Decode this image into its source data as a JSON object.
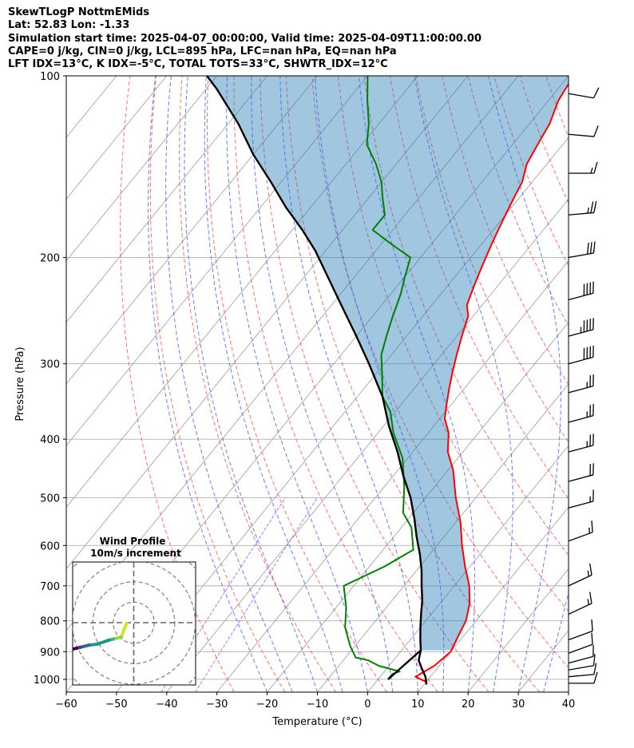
{
  "header": {
    "line1": "SkewTLogP NottmEMids",
    "line2": "Lat: 52.83   Lon: -1.33",
    "line3": "Simulation start time: 2025-04-07_00:00:00, Valid time: 2025-04-09T11:00:00.00",
    "line4": "CAPE=0 j/kg, CIN=0 j/kg, LCL=895 hPa, LFC=nan hPa, EQ=nan hPa",
    "line5": "LFT IDX=13°C, K IDX=-5°C, TOTAL TOTS=33°C, SHWTR_IDX=12°C"
  },
  "chart_data": {
    "type": "line",
    "title": "",
    "xlabel": "Temperature (°C)",
    "ylabel": "Pressure (hPa)",
    "xlim": [
      -60,
      40
    ],
    "ylim": [
      1050,
      100
    ],
    "yscale": "log",
    "grid": true,
    "x_ticks": [
      "−60",
      "−50",
      "−40",
      "−30",
      "−20",
      "−10",
      "0",
      "10",
      "20",
      "30",
      "40"
    ],
    "y_ticks": [
      "100",
      "200",
      "300",
      "400",
      "500",
      "600",
      "700",
      "800",
      "900",
      "1000"
    ],
    "temperature": {
      "color": "#ff0000",
      "points": [
        [
          10,
          1010
        ],
        [
          7,
          990
        ],
        [
          9,
          950
        ],
        [
          10,
          900
        ],
        [
          9,
          850
        ],
        [
          8,
          800
        ],
        [
          6,
          750
        ],
        [
          3,
          700
        ],
        [
          -1,
          650
        ],
        [
          -5,
          600
        ],
        [
          -9,
          550
        ],
        [
          -14,
          500
        ],
        [
          -19,
          450
        ],
        [
          -23,
          420
        ],
        [
          -26,
          390
        ],
        [
          -29,
          370
        ],
        [
          -31,
          350
        ],
        [
          -33,
          330
        ],
        [
          -35,
          310
        ],
        [
          -37,
          290
        ],
        [
          -39,
          270
        ],
        [
          -41,
          250
        ],
        [
          -43,
          240
        ],
        [
          -44,
          230
        ],
        [
          -45,
          220
        ],
        [
          -46,
          210
        ],
        [
          -47,
          200
        ],
        [
          -48,
          190
        ],
        [
          -49,
          180
        ],
        [
          -50,
          170
        ],
        [
          -51,
          160
        ],
        [
          -52,
          150
        ],
        [
          -54,
          140
        ],
        [
          -55,
          130
        ],
        [
          -56,
          120
        ],
        [
          -58,
          110
        ],
        [
          -59,
          100
        ]
      ]
    },
    "dewpoint": {
      "color": "#008000",
      "points": [
        [
          2,
          1000
        ],
        [
          2,
          980
        ],
        [
          3,
          970
        ],
        [
          -2,
          950
        ],
        [
          -5,
          930
        ],
        [
          -8,
          920
        ],
        [
          -11,
          880
        ],
        [
          -15,
          820
        ],
        [
          -18,
          760
        ],
        [
          -22,
          700
        ],
        [
          -17,
          650
        ],
        [
          -14,
          610
        ],
        [
          -18,
          560
        ],
        [
          -22,
          530
        ],
        [
          -26,
          480
        ],
        [
          -31,
          430
        ],
        [
          -37,
          390
        ],
        [
          -41,
          360
        ],
        [
          -45,
          340
        ],
        [
          -49,
          310
        ],
        [
          -52,
          290
        ],
        [
          -54,
          270
        ],
        [
          -56,
          250
        ],
        [
          -58,
          230
        ],
        [
          -60,
          215
        ],
        [
          -62,
          200
        ],
        [
          -68,
          190
        ],
        [
          -74,
          180
        ],
        [
          -74,
          170
        ],
        [
          -77,
          160
        ],
        [
          -80,
          150
        ],
        [
          -84,
          140
        ],
        [
          -89,
          130
        ],
        [
          -92,
          120
        ],
        [
          -96,
          110
        ],
        [
          -100,
          100
        ]
      ]
    },
    "parcel": {
      "color": "#000000",
      "points": [
        [
          10.5,
          1020
        ],
        [
          9,
          990
        ],
        [
          7,
          960
        ],
        [
          5,
          930
        ],
        [
          3.8,
          895
        ],
        [
          2,
          860
        ],
        [
          0,
          820
        ],
        [
          -2,
          780
        ],
        [
          -4,
          740
        ],
        [
          -6.5,
          700
        ],
        [
          -9,
          660
        ],
        [
          -12,
          620
        ],
        [
          -15.5,
          580
        ],
        [
          -19,
          540
        ],
        [
          -23,
          500
        ],
        [
          -28,
          460
        ],
        [
          -33,
          420
        ],
        [
          -39,
          380
        ],
        [
          -45,
          340
        ],
        [
          -53,
          300
        ],
        [
          -60,
          270
        ],
        [
          -68,
          240
        ],
        [
          -77,
          210
        ],
        [
          -82,
          195
        ],
        [
          -88,
          180
        ],
        [
          -95,
          165
        ],
        [
          -102,
          150
        ],
        [
          -110,
          135
        ],
        [
          -118,
          120
        ],
        [
          -128,
          105
        ],
        [
          -132,
          100
        ]
      ]
    },
    "lcl_segment": [
      [
        2,
        1000
      ],
      [
        3.8,
        895
      ]
    ],
    "wind_barbs": [
      {
        "p": 1015,
        "speed": 10,
        "dir": 270
      },
      {
        "p": 990,
        "speed": 10,
        "dir": 265
      },
      {
        "p": 965,
        "speed": 10,
        "dir": 260
      },
      {
        "p": 940,
        "speed": 10,
        "dir": 255
      },
      {
        "p": 905,
        "speed": 10,
        "dir": 250
      },
      {
        "p": 860,
        "speed": 10,
        "dir": 250
      },
      {
        "p": 780,
        "speed": 15,
        "dir": 245
      },
      {
        "p": 700,
        "speed": 15,
        "dir": 245
      },
      {
        "p": 590,
        "speed": 15,
        "dir": 250
      },
      {
        "p": 520,
        "speed": 15,
        "dir": 255
      },
      {
        "p": 470,
        "speed": 20,
        "dir": 255
      },
      {
        "p": 420,
        "speed": 25,
        "dir": 255
      },
      {
        "p": 375,
        "speed": 25,
        "dir": 255
      },
      {
        "p": 335,
        "speed": 25,
        "dir": 255
      },
      {
        "p": 300,
        "speed": 40,
        "dir": 255
      },
      {
        "p": 270,
        "speed": 45,
        "dir": 255
      },
      {
        "p": 235,
        "speed": 40,
        "dir": 255
      },
      {
        "p": 200,
        "speed": 30,
        "dir": 260
      },
      {
        "p": 170,
        "speed": 25,
        "dir": 265
      },
      {
        "p": 145,
        "speed": 15,
        "dir": 270
      },
      {
        "p": 125,
        "speed": 10,
        "dir": 275
      },
      {
        "p": 107,
        "speed": 10,
        "dir": 280
      }
    ],
    "hodograph": {
      "title": "Wind Profile",
      "subtitle": "10m/s increment",
      "rings": [
        10,
        20,
        30,
        40
      ],
      "range": 30,
      "points": [
        [
          -3.5,
          -0.3
        ],
        [
          -5,
          -4
        ],
        [
          -6,
          -7
        ],
        [
          -10,
          -8
        ],
        [
          -12,
          -8.5
        ],
        [
          -18,
          -10.5
        ],
        [
          -22,
          -11
        ],
        [
          -26,
          -12
        ],
        [
          -28,
          -12.5
        ],
        [
          -30,
          -13
        ]
      ],
      "path_colors": [
        "#cce820",
        "#8fd744",
        "#35b779",
        "#21918c",
        "#31688e",
        "#443a83",
        "#440154"
      ]
    }
  }
}
